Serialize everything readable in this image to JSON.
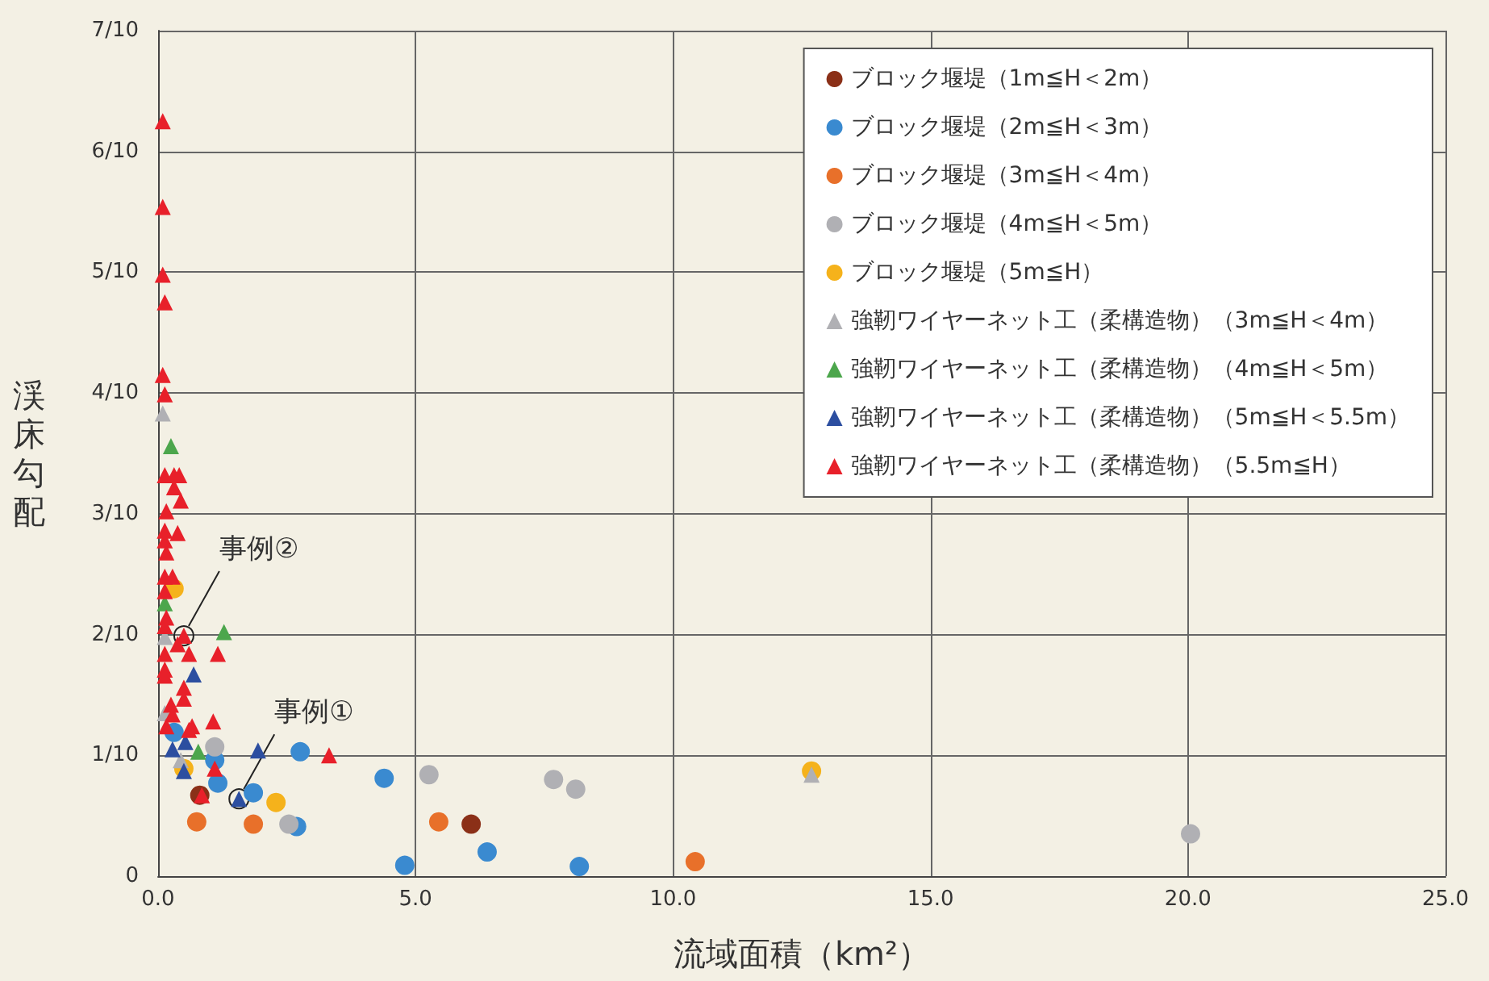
{
  "chart_data": {
    "type": "scatter",
    "xlabel": "流域面積（km²）",
    "ylabel": "渓床勾配",
    "xlim": [
      0,
      25
    ],
    "xticks": [
      {
        "value": 0,
        "label": "0.0"
      },
      {
        "value": 5,
        "label": "5.0"
      },
      {
        "value": 10,
        "label": "10.0"
      },
      {
        "value": 15,
        "label": "15.0"
      },
      {
        "value": 20,
        "label": "20.0"
      },
      {
        "value": 25,
        "label": "25.0"
      }
    ],
    "ylim": [
      0,
      0.7
    ],
    "yticks": [
      {
        "value": 0,
        "label": "0"
      },
      {
        "value": 0.1,
        "label": "1/10"
      },
      {
        "value": 0.2,
        "label": "2/10"
      },
      {
        "value": 0.3,
        "label": "3/10"
      },
      {
        "value": 0.4,
        "label": "4/10"
      },
      {
        "value": 0.5,
        "label": "5/10"
      },
      {
        "value": 0.6,
        "label": "6/10"
      },
      {
        "value": 0.7,
        "label": "7/10"
      }
    ],
    "grid": true,
    "legend": "top right",
    "annotations": [
      {
        "text": "事例②",
        "x": 0.5,
        "y": 0.199
      },
      {
        "text": "事例①",
        "x": 1.57,
        "y": 0.064
      }
    ],
    "series": [
      {
        "name": "ブロック堰堤（1m≦H＜2m）",
        "color": "#8b3018",
        "marker": "circle",
        "x": [
          0.81,
          6.08
        ],
        "values": [
          0.067,
          0.043
        ]
      },
      {
        "name": "ブロック堰堤（2m≦H＜3m）",
        "color": "#3a8ad0",
        "marker": "circle",
        "x": [
          0.31,
          1.1,
          1.16,
          1.85,
          2.76,
          2.69,
          4.39,
          4.79,
          6.39,
          8.18
        ],
        "values": [
          0.119,
          0.096,
          0.077,
          0.069,
          0.103,
          0.041,
          0.081,
          0.009,
          0.02,
          0.008
        ]
      },
      {
        "name": "ブロック堰堤（3m≦H＜4m）",
        "color": "#e8702a",
        "marker": "circle",
        "x": [
          0.75,
          1.85,
          5.45,
          10.43
        ],
        "values": [
          0.045,
          0.043,
          0.045,
          0.012
        ]
      },
      {
        "name": "ブロック堰堤（4m≦H＜5m）",
        "color": "#b0b0b4",
        "marker": "circle",
        "x": [
          1.1,
          2.54,
          5.26,
          7.68,
          8.11,
          20.05
        ],
        "values": [
          0.107,
          0.043,
          0.084,
          0.08,
          0.072,
          0.035
        ]
      },
      {
        "name": "ブロック堰堤（5m≦H）",
        "color": "#f5b21b",
        "marker": "circle",
        "x": [
          0.31,
          0.5,
          2.29,
          12.69
        ],
        "values": [
          0.238,
          0.089,
          0.061,
          0.087
        ]
      },
      {
        "name": "強靭ワイヤーネット工（柔構造物）（3m≦H＜4m）",
        "color": "#b0b0b4",
        "marker": "triangle",
        "x": [
          0.09,
          0.13,
          0.13,
          0.44,
          12.69
        ],
        "values": [
          0.383,
          0.198,
          0.135,
          0.096,
          0.084
        ]
      },
      {
        "name": "強靭ワイヤーネット工（柔構造物）（4m≦H＜5m）",
        "color": "#4ca64c",
        "marker": "triangle",
        "x": [
          0.25,
          0.13,
          1.28,
          0.78
        ],
        "values": [
          0.356,
          0.226,
          0.202,
          0.103
        ]
      },
      {
        "name": "強靭ワイヤーネット工（柔構造物）（5m≦H＜5.5m）",
        "color": "#2c4ea0",
        "marker": "triangle",
        "x": [
          0.69,
          0.28,
          0.53,
          0.5,
          1.57,
          1.94
        ],
        "values": [
          0.167,
          0.105,
          0.111,
          0.087,
          0.064,
          0.104
        ]
      },
      {
        "name": "強靭ワイヤーネット工（柔構造物）（5.5m≦H）",
        "color": "#e8202a",
        "marker": "triangle",
        "x": [
          0.09,
          0.09,
          0.09,
          0.13,
          0.09,
          0.13,
          0.13,
          0.31,
          0.41,
          0.31,
          0.44,
          0.16,
          0.13,
          0.38,
          0.13,
          0.16,
          0.13,
          0.28,
          0.13,
          0.16,
          0.13,
          0.5,
          0.38,
          0.13,
          0.6,
          1.16,
          0.13,
          0.13,
          0.5,
          0.5,
          0.25,
          0.28,
          0.16,
          0.6,
          0.66,
          1.07,
          1.1,
          0.85,
          3.32
        ],
        "values": [
          0.625,
          0.554,
          0.498,
          0.475,
          0.415,
          0.399,
          0.332,
          0.332,
          0.332,
          0.322,
          0.311,
          0.302,
          0.286,
          0.284,
          0.278,
          0.268,
          0.248,
          0.248,
          0.236,
          0.214,
          0.207,
          0.199,
          0.192,
          0.184,
          0.184,
          0.184,
          0.171,
          0.166,
          0.156,
          0.147,
          0.142,
          0.134,
          0.124,
          0.121,
          0.124,
          0.128,
          0.089,
          0.067,
          0.1
        ]
      }
    ]
  }
}
